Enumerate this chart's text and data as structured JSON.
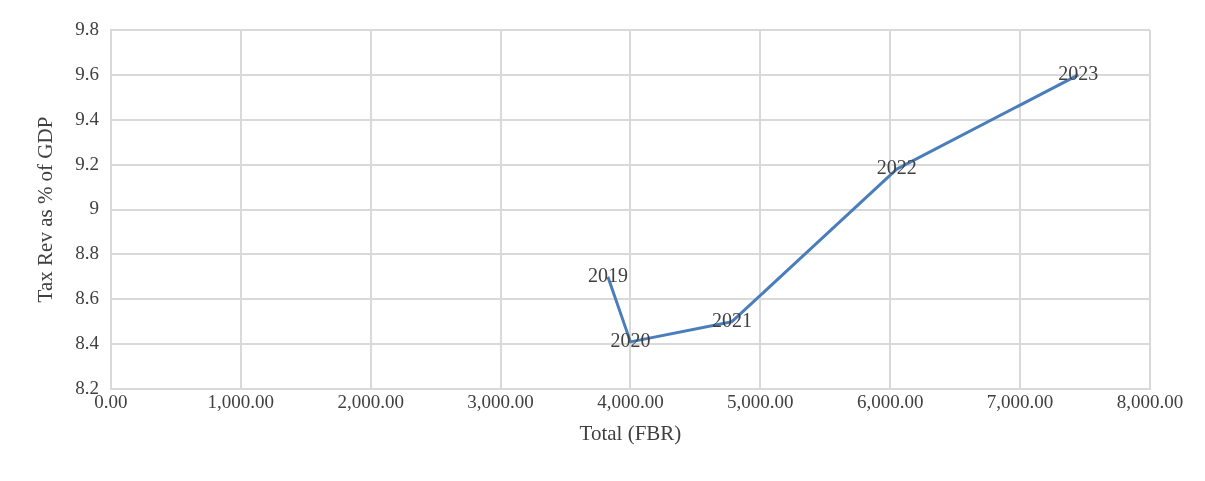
{
  "chart_data": {
    "type": "line",
    "xlabel": "Total (FBR)",
    "ylabel": "Tax Rev as % of GDP",
    "x": [
      3826,
      4000,
      4781,
      6050,
      7448
    ],
    "series": [
      {
        "color": "#4a7ebb",
        "values": [
          8.7,
          8.41,
          8.5,
          9.18,
          9.6
        ]
      }
    ],
    "xlim": [
      0,
      8000
    ],
    "xticks": [
      {
        "value": 0,
        "label": "0.00"
      },
      {
        "value": 1000,
        "label": "1,000.00"
      },
      {
        "value": 2000,
        "label": "2,000.00"
      },
      {
        "value": 3000,
        "label": "3,000.00"
      },
      {
        "value": 4000,
        "label": "4,000.00"
      },
      {
        "value": 5000,
        "label": "5,000.00"
      },
      {
        "value": 6000,
        "label": "6,000.00"
      },
      {
        "value": 7000,
        "label": "7,000.00"
      },
      {
        "value": 8000,
        "label": "8,000.00"
      }
    ],
    "ylim": [
      8.2,
      9.8
    ],
    "yticks": [
      8.2,
      8.4,
      8.6,
      8.8,
      9,
      9.2,
      9.4,
      9.6,
      9.8
    ],
    "grid": true,
    "legend": false,
    "marker": "none",
    "line_style": "solid",
    "annotations": [
      {
        "text": "2019",
        "x": 3826,
        "y": 8.7
      },
      {
        "text": "2020",
        "x": 4000,
        "y": 8.41
      },
      {
        "text": "2021",
        "x": 4781,
        "y": 8.5
      },
      {
        "text": "2022",
        "x": 6050,
        "y": 9.18
      },
      {
        "text": "2023",
        "x": 7448,
        "y": 9.6
      }
    ]
  }
}
